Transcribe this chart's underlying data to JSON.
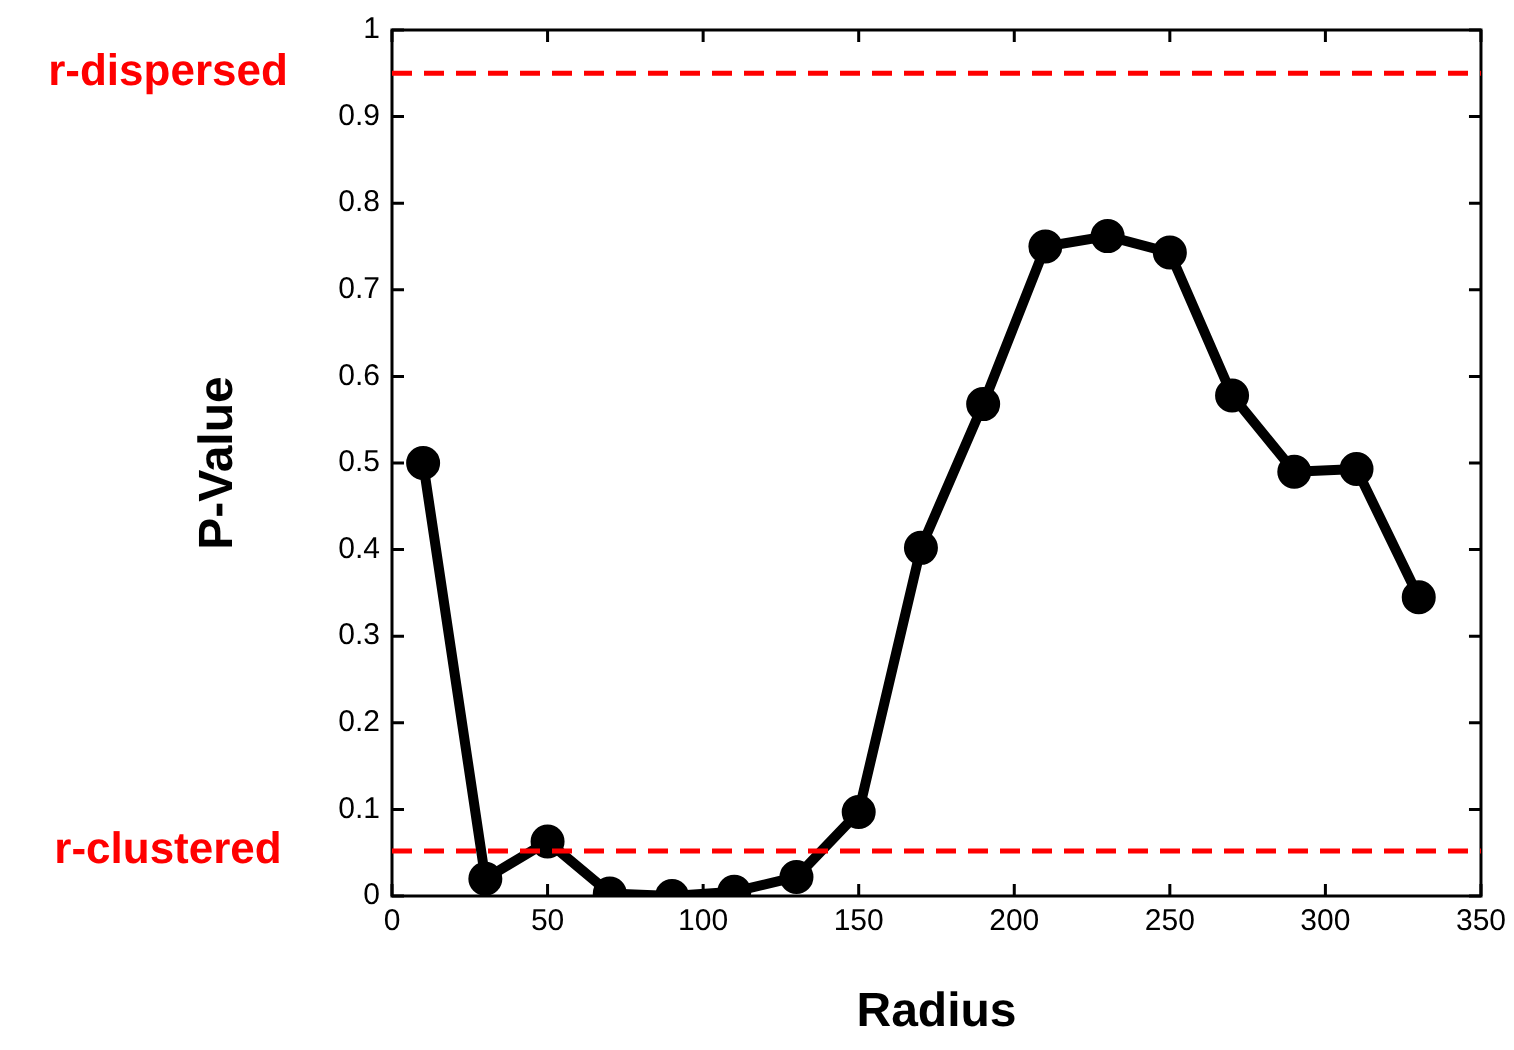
{
  "chart_data": {
    "type": "line",
    "xlabel": "Radius",
    "ylabel": "P-Value",
    "x": [
      10,
      30,
      50,
      70,
      90,
      110,
      130,
      150,
      170,
      190,
      210,
      230,
      250,
      270,
      290,
      310,
      330
    ],
    "series": [
      {
        "color": "#000000",
        "values": [
          0.5,
          0.02,
          0.063,
          0.003,
          0,
          0.005,
          0.022,
          0.097,
          0.402,
          0.568,
          0.75,
          0.762,
          0.743,
          0.578,
          0.49,
          0.493,
          0.345
        ]
      }
    ],
    "xlim": [
      0,
      350
    ],
    "xticks": [
      0,
      50,
      100,
      150,
      200,
      250,
      300,
      350
    ],
    "ylim": [
      0,
      1
    ],
    "yticks": [
      0,
      0.1,
      0.2,
      0.3,
      0.4,
      0.5,
      0.6,
      0.7,
      0.8,
      0.9,
      1
    ],
    "ref_lines": [
      {
        "axis": "y",
        "value": 0.95,
        "label": "r-dispersed",
        "color": "#ff0000",
        "line_style": "dashed"
      },
      {
        "axis": "y",
        "value": 0.052,
        "label": "r-clustered",
        "color": "#ff0000",
        "line_style": "dashed"
      }
    ],
    "marker": "circle",
    "line_style": "solid",
    "legend": false
  }
}
